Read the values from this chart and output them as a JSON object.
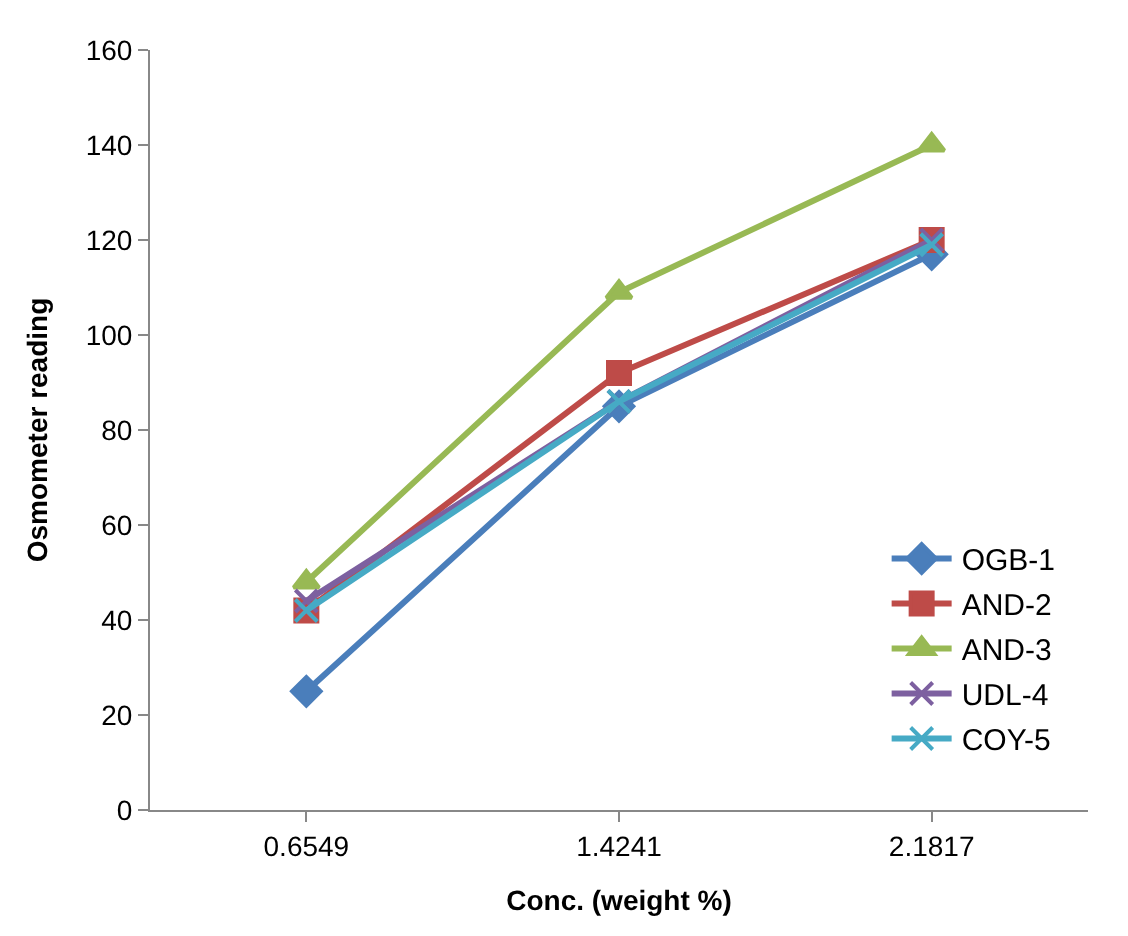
{
  "chart_data": {
    "type": "line",
    "xlabel": "Conc. (weight %)",
    "ylabel": "Osmometer reading",
    "categories": [
      "0.6549",
      "1.4241",
      "2.1817"
    ],
    "ylim": [
      0,
      160
    ],
    "yticks": [
      0,
      20,
      40,
      60,
      80,
      100,
      120,
      140,
      160
    ],
    "legend": "right",
    "series": [
      {
        "name": "OGB-1",
        "color": "#4a7ebb",
        "marker": "diamond",
        "values": [
          25,
          85,
          117
        ]
      },
      {
        "name": "AND-2",
        "color": "#be4b48",
        "marker": "square",
        "values": [
          42,
          92,
          120
        ]
      },
      {
        "name": "AND-3",
        "color": "#98b954",
        "marker": "triangle",
        "values": [
          48,
          109,
          140
        ]
      },
      {
        "name": "UDL-4",
        "color": "#7d60a0",
        "marker": "cross",
        "values": [
          44,
          86,
          120
        ]
      },
      {
        "name": "COY-5",
        "color": "#46aac5",
        "marker": "cross",
        "values": [
          42,
          86,
          119
        ]
      }
    ]
  }
}
